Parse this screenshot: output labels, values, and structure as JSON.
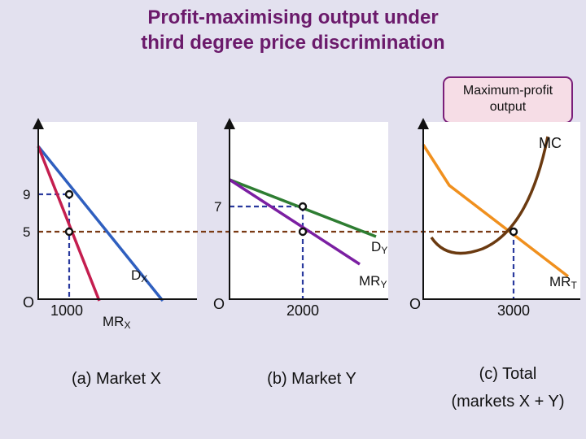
{
  "title": {
    "line1": "Profit-maximising output under",
    "line2": "third degree price discrimination"
  },
  "callout": {
    "line1": "Maximum-profit",
    "line2": "output"
  },
  "colors": {
    "background": "#e3e1ef",
    "title": "#6b1a6b",
    "panel": "#ffffff",
    "demand_x": "#2f5fbf",
    "mr_x": "#c41e4f",
    "demand_y": "#2e7d32",
    "mr_y": "#7b1fa2",
    "mc": "#6b3a10",
    "mr_total": "#f0901e",
    "dashed": "#2a3a9e"
  },
  "panels": {
    "a": {
      "caption": "(a) Market X",
      "origin": "O",
      "price_high": "9",
      "price_low": "5",
      "quantity": "1000",
      "demand_label": "D",
      "demand_sub": "X",
      "mr_label": "MR",
      "mr_sub": "X"
    },
    "b": {
      "caption": "(b) Market Y",
      "origin": "O",
      "price": "7",
      "quantity": "2000",
      "demand_label": "D",
      "demand_sub": "Y",
      "mr_label": "MR",
      "mr_sub": "Y"
    },
    "c": {
      "caption_line1": "(c) Total",
      "caption_line2": "(markets X + Y)",
      "origin": "O",
      "quantity": "3000",
      "mc_label": "MC",
      "mrt_label": "MR",
      "mrt_sub": "T"
    }
  }
}
